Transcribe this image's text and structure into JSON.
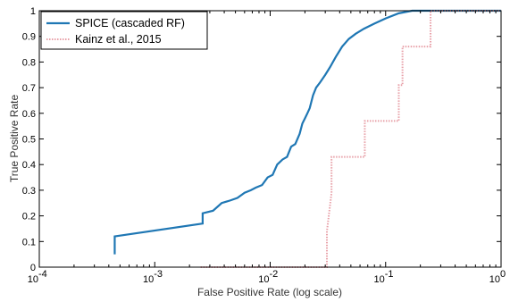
{
  "chart_data": {
    "type": "line",
    "title": "",
    "xlabel": "False Positive Rate (log scale)",
    "ylabel": "True Positive Rate",
    "x_scale": "log",
    "xlim": [
      0.0001,
      1
    ],
    "ylim": [
      0,
      1
    ],
    "x_ticks": [
      {
        "base": "10",
        "exp": "-4"
      },
      {
        "base": "10",
        "exp": "-3"
      },
      {
        "base": "10",
        "exp": "-2"
      },
      {
        "base": "10",
        "exp": "-1"
      },
      {
        "base": "10",
        "exp": "0"
      }
    ],
    "y_ticks": [
      "0",
      "0.1",
      "0.2",
      "0.3",
      "0.4",
      "0.5",
      "0.6",
      "0.7",
      "0.8",
      "0.9",
      "1"
    ],
    "grid": false,
    "legend_position": "top-left",
    "series": [
      {
        "name": "SPICE (cascaded RF)",
        "color": "#1f77b4",
        "style": "solid",
        "points": [
          [
            0.00045,
            0.05
          ],
          [
            0.00045,
            0.12
          ],
          [
            0.0026,
            0.17
          ],
          [
            0.0026,
            0.21
          ],
          [
            0.0032,
            0.22
          ],
          [
            0.0038,
            0.25
          ],
          [
            0.0045,
            0.26
          ],
          [
            0.0052,
            0.27
          ],
          [
            0.006,
            0.29
          ],
          [
            0.0068,
            0.3
          ],
          [
            0.0075,
            0.31
          ],
          [
            0.0085,
            0.32
          ],
          [
            0.0095,
            0.35
          ],
          [
            0.0105,
            0.36
          ],
          [
            0.0115,
            0.4
          ],
          [
            0.0128,
            0.42
          ],
          [
            0.014,
            0.43
          ],
          [
            0.0152,
            0.47
          ],
          [
            0.0165,
            0.48
          ],
          [
            0.018,
            0.52
          ],
          [
            0.019,
            0.56
          ],
          [
            0.02,
            0.58
          ],
          [
            0.021,
            0.6
          ],
          [
            0.022,
            0.62
          ],
          [
            0.0235,
            0.67
          ],
          [
            0.025,
            0.7
          ],
          [
            0.027,
            0.72
          ],
          [
            0.03,
            0.75
          ],
          [
            0.033,
            0.78
          ],
          [
            0.037,
            0.82
          ],
          [
            0.042,
            0.86
          ],
          [
            0.048,
            0.89
          ],
          [
            0.055,
            0.91
          ],
          [
            0.065,
            0.93
          ],
          [
            0.08,
            0.95
          ],
          [
            0.1,
            0.97
          ],
          [
            0.13,
            0.99
          ],
          [
            0.17,
            1.0
          ],
          [
            1.0,
            1.0
          ]
        ]
      },
      {
        "name": "Kainz et al., 2015",
        "color": "#e8a0a8",
        "style": "dotted",
        "points": [
          [
            0.0025,
            0.0
          ],
          [
            0.031,
            0.0
          ],
          [
            0.031,
            0.14
          ],
          [
            0.034,
            0.29
          ],
          [
            0.034,
            0.43
          ],
          [
            0.066,
            0.43
          ],
          [
            0.066,
            0.57
          ],
          [
            0.13,
            0.57
          ],
          [
            0.13,
            0.71
          ],
          [
            0.14,
            0.71
          ],
          [
            0.14,
            0.86
          ],
          [
            0.245,
            0.86
          ],
          [
            0.245,
            1.0
          ],
          [
            1.0,
            1.0
          ]
        ]
      }
    ]
  }
}
